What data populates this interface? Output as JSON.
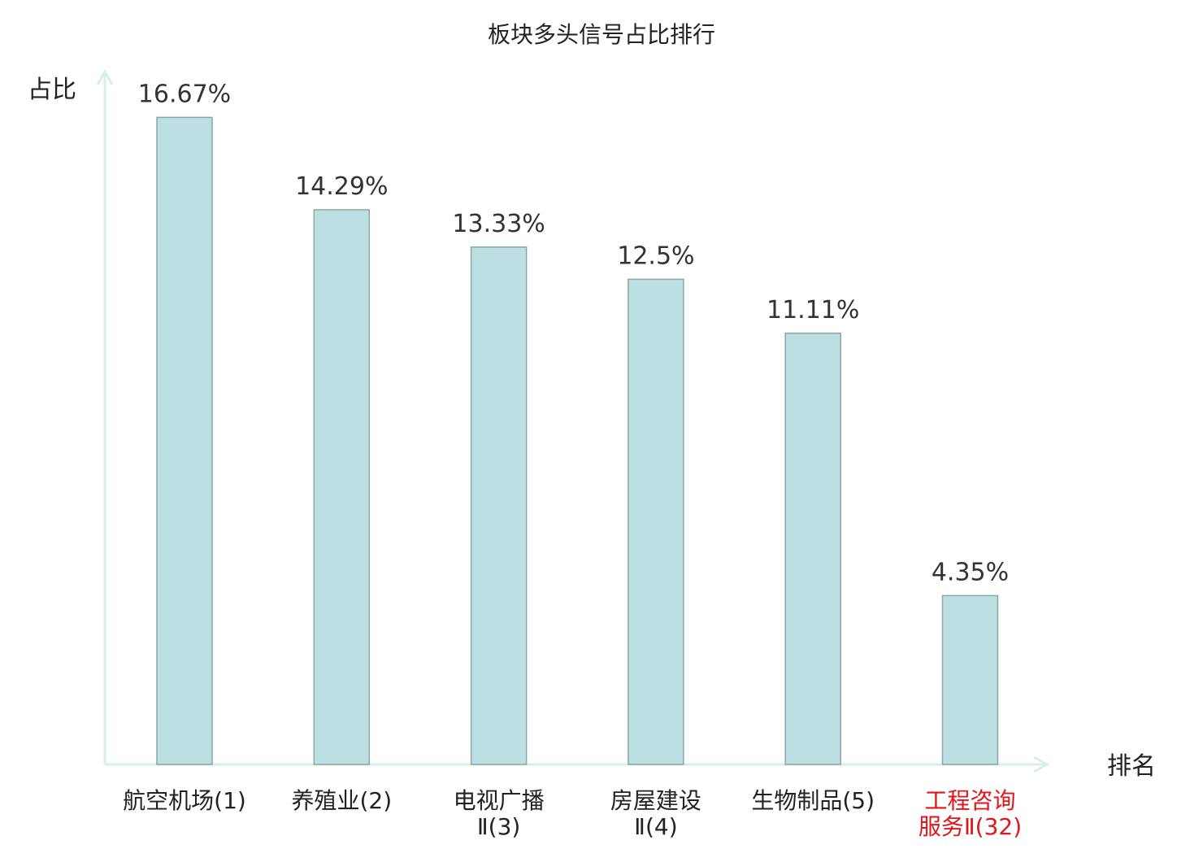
{
  "chart_data": {
    "type": "bar",
    "title": "板块多头信号占比排行",
    "ylabel": "占比",
    "xlabel": "排名",
    "categories": [
      [
        "航空机场(1)"
      ],
      [
        "养殖业(2)"
      ],
      [
        "电视广播",
        "Ⅱ(3)"
      ],
      [
        "房屋建设",
        "Ⅱ(4)"
      ],
      [
        "生物制品(5)"
      ],
      [
        "工程咨询",
        "服务Ⅱ(32)"
      ]
    ],
    "values": [
      16.67,
      14.29,
      13.33,
      12.5,
      11.11,
      4.35
    ],
    "value_labels": [
      "16.67%",
      "14.29%",
      "13.33%",
      "12.5%",
      "11.11%",
      "4.35%"
    ],
    "highlight_index": 5,
    "ylim": [
      0,
      17.6
    ],
    "grid": false,
    "legend": "none",
    "colors": {
      "bar_fill": "#bce0e2",
      "bar_stroke": "#8aa8a8",
      "axis": "#d6efec",
      "text": "#333333",
      "label": "#222222",
      "highlight": "#e0161b"
    }
  }
}
